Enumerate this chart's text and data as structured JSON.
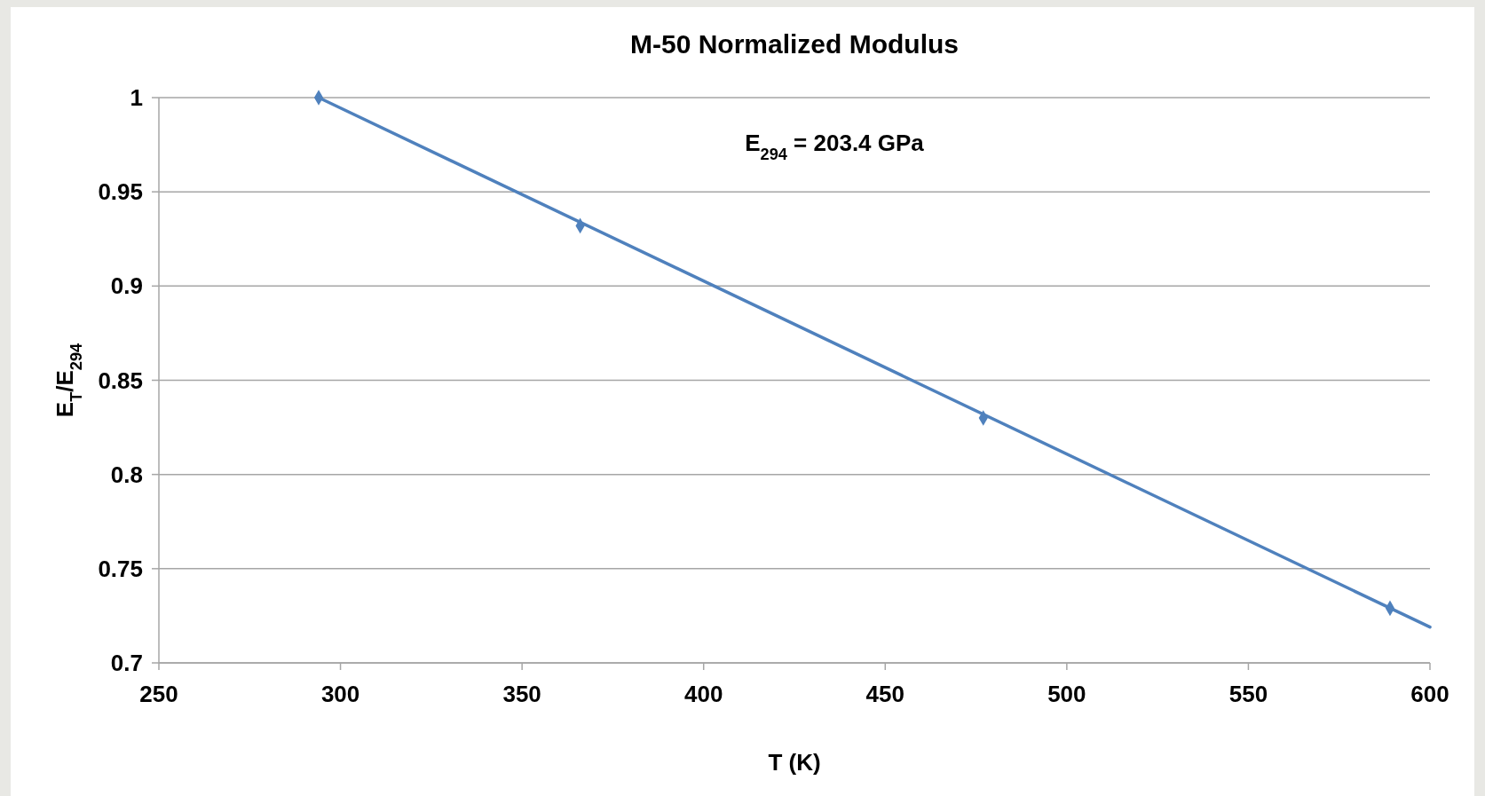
{
  "chart_data": {
    "type": "scatter",
    "title": "M-50 Normalized Modulus",
    "xlabel": "T (K)",
    "ylabel": "E$_{T}$/E$_{294}$",
    "annotations": [
      "E$_{294}$ = 203.4 GPa"
    ],
    "series": [
      {
        "color": "#4f81bd",
        "marker": "diamond",
        "x": [
          294,
          366,
          477,
          589
        ],
        "values": [
          1.0,
          0.932,
          0.83,
          0.729
        ]
      },
      {
        "type": "line",
        "color": "#4f81bd",
        "marker": "none",
        "line_style": "solid",
        "x": [
          294,
          600
        ],
        "values": [
          1.0,
          0.719
        ]
      }
    ],
    "xlim": [
      250,
      600
    ],
    "xticks": [
      250,
      300,
      350,
      400,
      450,
      500,
      550,
      600
    ],
    "ylim": [
      0.7,
      1
    ],
    "yticks": [
      0.7,
      0.75,
      0.8,
      0.85,
      0.9,
      0.95,
      1
    ],
    "grid": "y"
  }
}
